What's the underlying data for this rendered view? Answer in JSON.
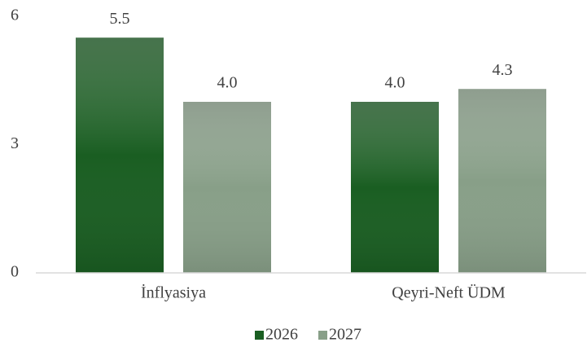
{
  "chart_data": {
    "type": "bar",
    "categories": [
      "İnflyasiya",
      "Qeyri-Neft ÜDM"
    ],
    "series": [
      {
        "name": "2026",
        "color": "#1a5e22",
        "values": [
          5.5,
          4.0
        ],
        "value_labels": [
          "5.5",
          "4.0"
        ]
      },
      {
        "name": "2027",
        "color": "#889f88",
        "values": [
          4.0,
          4.3
        ],
        "value_labels": [
          "4.0",
          "4.3"
        ]
      }
    ],
    "ylim": [
      0,
      6
    ],
    "yticks": [
      0,
      3,
      6
    ],
    "grid": false,
    "legend": "bottom"
  }
}
